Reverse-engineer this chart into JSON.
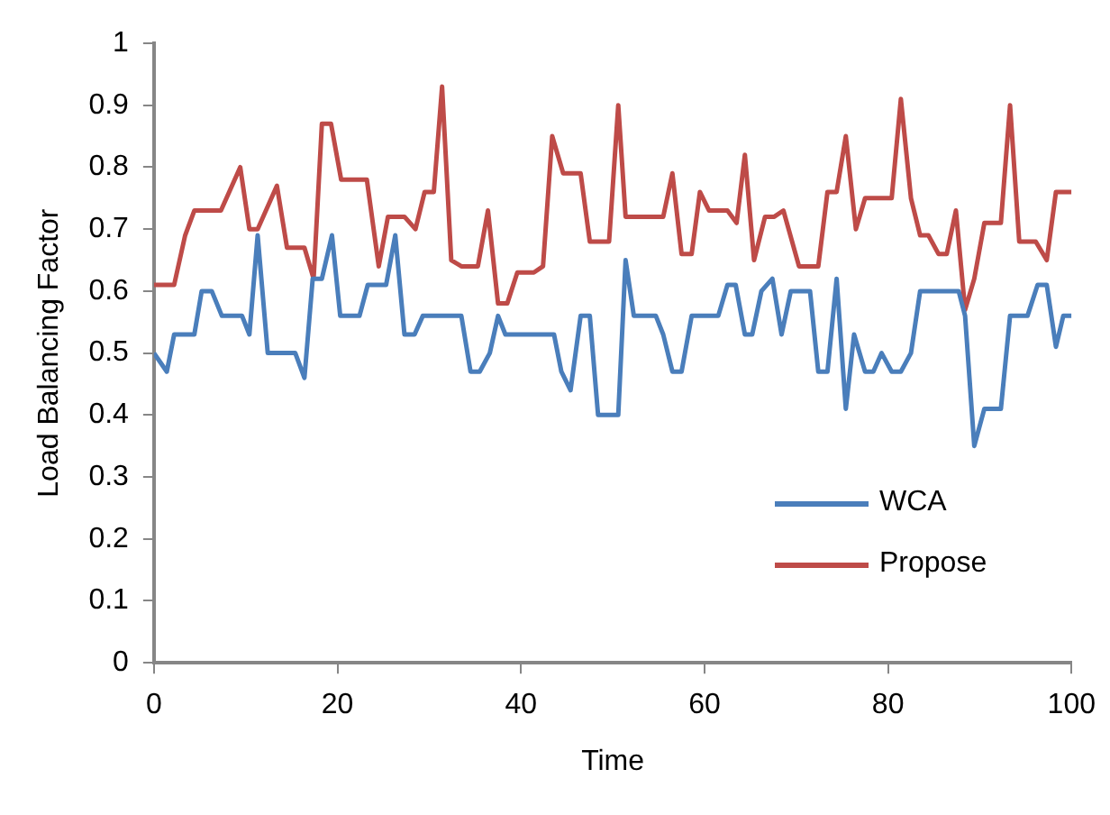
{
  "chart_data": {
    "type": "line",
    "xlabel": "Time",
    "ylabel": "Load Balancing Factor",
    "xlim": [
      0,
      100
    ],
    "xticks": [
      0,
      20,
      40,
      60,
      80,
      100
    ],
    "ylim": [
      0,
      1
    ],
    "yticks": [
      0,
      0.1,
      0.2,
      0.3,
      0.4,
      0.5,
      0.6,
      0.7,
      0.8,
      0.9,
      1
    ],
    "grid": false,
    "legend": "right",
    "marker": "none",
    "line_style": "solid",
    "series": [
      {
        "name": "WCA",
        "color": "#4a7ebb",
        "x": [
          0,
          1.4,
          2.2,
          4.4,
          5.2,
          6.3,
          7.4,
          9.6,
          10.4,
          11.3,
          12.4,
          15.4,
          16.4,
          17.3,
          18.3,
          19.4,
          20.3,
          22.4,
          23.3,
          25.3,
          26.3,
          27.3,
          28.4,
          29.3,
          33.5,
          34.5,
          35.5,
          36.6,
          37.5,
          38.3,
          43.6,
          44.4,
          45.4,
          46.5,
          47.5,
          48.4,
          50.6,
          51.4,
          52.3,
          54.7,
          55.5,
          56.5,
          57.5,
          58.6,
          61.5,
          62.5,
          63.4,
          64.4,
          65.2,
          66.2,
          67.4,
          68.4,
          69.4,
          71.5,
          72.4,
          73.4,
          74.4,
          75.4,
          76.3,
          77.5,
          78.4,
          79.3,
          80.4,
          81.4,
          82.5,
          83.5,
          87.7,
          88.4,
          89.4,
          90.5,
          92.3,
          93.3,
          95.2,
          96.3,
          97.3,
          98.3,
          99.1,
          100
        ],
        "values": [
          0.5,
          0.47,
          0.53,
          0.53,
          0.6,
          0.6,
          0.56,
          0.56,
          0.53,
          0.69,
          0.5,
          0.5,
          0.46,
          0.62,
          0.62,
          0.69,
          0.56,
          0.56,
          0.61,
          0.61,
          0.69,
          0.53,
          0.53,
          0.56,
          0.56,
          0.47,
          0.47,
          0.5,
          0.56,
          0.53,
          0.53,
          0.47,
          0.44,
          0.56,
          0.56,
          0.4,
          0.4,
          0.65,
          0.56,
          0.56,
          0.53,
          0.47,
          0.47,
          0.56,
          0.56,
          0.61,
          0.61,
          0.53,
          0.53,
          0.6,
          0.62,
          0.53,
          0.6,
          0.6,
          0.47,
          0.47,
          0.62,
          0.41,
          0.53,
          0.47,
          0.47,
          0.5,
          0.47,
          0.47,
          0.5,
          0.6,
          0.6,
          0.56,
          0.35,
          0.41,
          0.41,
          0.56,
          0.56,
          0.61,
          0.61,
          0.51,
          0.56,
          0.56
        ]
      },
      {
        "name": "Propose",
        "color": "#be4b48",
        "x": [
          0,
          2.2,
          3.4,
          4.4,
          7.3,
          9.4,
          10.4,
          11.3,
          13.4,
          14.5,
          16.4,
          17.4,
          18.3,
          19.3,
          20.4,
          23.2,
          24.5,
          25.5,
          27.3,
          28.5,
          29.5,
          30.5,
          31.4,
          32.4,
          33.5,
          35.3,
          36.4,
          37.5,
          38.5,
          39.6,
          41.4,
          42.4,
          43.4,
          44.6,
          46.5,
          47.5,
          49.6,
          50.6,
          51.4,
          55.5,
          56.5,
          57.5,
          58.6,
          59.5,
          60.5,
          62.5,
          63.5,
          64.4,
          65.4,
          66.6,
          67.6,
          68.6,
          70.3,
          72.4,
          73.4,
          74.4,
          75.4,
          76.5,
          77.5,
          80.4,
          81.4,
          82.5,
          83.5,
          84.4,
          85.5,
          86.4,
          87.4,
          88.4,
          89.4,
          90.5,
          92.3,
          93.3,
          94.3,
          96.1,
          97.3,
          98.3,
          100
        ],
        "values": [
          0.61,
          0.61,
          0.69,
          0.73,
          0.73,
          0.8,
          0.7,
          0.7,
          0.77,
          0.67,
          0.67,
          0.62,
          0.87,
          0.87,
          0.78,
          0.78,
          0.64,
          0.72,
          0.72,
          0.7,
          0.76,
          0.76,
          0.93,
          0.65,
          0.64,
          0.64,
          0.73,
          0.58,
          0.58,
          0.63,
          0.63,
          0.64,
          0.85,
          0.79,
          0.79,
          0.68,
          0.68,
          0.9,
          0.72,
          0.72,
          0.79,
          0.66,
          0.66,
          0.76,
          0.73,
          0.73,
          0.71,
          0.82,
          0.65,
          0.72,
          0.72,
          0.73,
          0.64,
          0.64,
          0.76,
          0.76,
          0.85,
          0.7,
          0.75,
          0.75,
          0.91,
          0.75,
          0.69,
          0.69,
          0.66,
          0.66,
          0.73,
          0.57,
          0.62,
          0.71,
          0.71,
          0.9,
          0.68,
          0.68,
          0.65,
          0.76,
          0.76
        ]
      }
    ]
  }
}
